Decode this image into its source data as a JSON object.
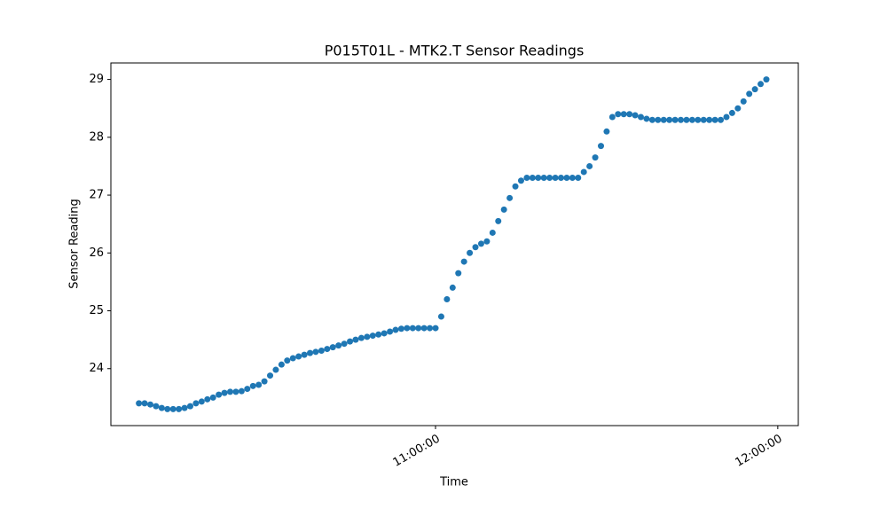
{
  "chart_data": {
    "type": "scatter",
    "title": "P015T01L - MTK2.T Sensor Readings",
    "x_label": "Time",
    "y_label": "Sensor Reading",
    "color": "#1f77b4",
    "x": [
      "10:08:00",
      "10:09:00",
      "10:10:00",
      "10:11:00",
      "10:12:00",
      "10:13:00",
      "10:14:00",
      "10:15:00",
      "10:16:00",
      "10:17:00",
      "10:18:00",
      "10:19:00",
      "10:20:00",
      "10:21:00",
      "10:22:00",
      "10:23:00",
      "10:24:00",
      "10:25:00",
      "10:26:00",
      "10:27:00",
      "10:28:00",
      "10:29:00",
      "10:30:00",
      "10:31:00",
      "10:32:00",
      "10:33:00",
      "10:34:00",
      "10:35:00",
      "10:36:00",
      "10:37:00",
      "10:38:00",
      "10:39:00",
      "10:40:00",
      "10:41:00",
      "10:42:00",
      "10:43:00",
      "10:44:00",
      "10:45:00",
      "10:46:00",
      "10:47:00",
      "10:48:00",
      "10:49:00",
      "10:50:00",
      "10:51:00",
      "10:52:00",
      "10:53:00",
      "10:54:00",
      "10:55:00",
      "10:56:00",
      "10:57:00",
      "10:58:00",
      "10:59:00",
      "11:00:00",
      "11:01:00",
      "11:02:00",
      "11:03:00",
      "11:04:00",
      "11:05:00",
      "11:06:00",
      "11:07:00",
      "11:08:00",
      "11:09:00",
      "11:10:00",
      "11:11:00",
      "11:12:00",
      "11:13:00",
      "11:14:00",
      "11:15:00",
      "11:16:00",
      "11:17:00",
      "11:18:00",
      "11:19:00",
      "11:20:00",
      "11:21:00",
      "11:22:00",
      "11:23:00",
      "11:24:00",
      "11:25:00",
      "11:26:00",
      "11:27:00",
      "11:28:00",
      "11:29:00",
      "11:30:00",
      "11:31:00",
      "11:32:00",
      "11:33:00",
      "11:34:00",
      "11:35:00",
      "11:36:00",
      "11:37:00",
      "11:38:00",
      "11:39:00",
      "11:40:00",
      "11:41:00",
      "11:42:00",
      "11:43:00",
      "11:44:00",
      "11:45:00",
      "11:46:00",
      "11:47:00",
      "11:48:00",
      "11:49:00",
      "11:50:00",
      "11:51:00",
      "11:52:00",
      "11:53:00",
      "11:54:00",
      "11:55:00",
      "11:56:00",
      "11:57:00",
      "11:58:00"
    ],
    "values": [
      23.4,
      23.4,
      23.38,
      23.35,
      23.32,
      23.3,
      23.3,
      23.3,
      23.32,
      23.35,
      23.4,
      23.43,
      23.47,
      23.5,
      23.55,
      23.58,
      23.6,
      23.6,
      23.61,
      23.65,
      23.7,
      23.72,
      23.78,
      23.88,
      23.98,
      24.07,
      24.14,
      24.18,
      24.21,
      24.24,
      24.27,
      24.29,
      24.31,
      24.34,
      24.37,
      24.4,
      24.43,
      24.47,
      24.5,
      24.53,
      24.55,
      24.57,
      24.59,
      24.61,
      24.64,
      24.67,
      24.69,
      24.7,
      24.7,
      24.7,
      24.7,
      24.7,
      24.7,
      24.9,
      25.2,
      25.4,
      25.65,
      25.85,
      26.0,
      26.1,
      26.16,
      26.2,
      26.35,
      26.55,
      26.75,
      26.95,
      27.15,
      27.25,
      27.3,
      27.3,
      27.3,
      27.3,
      27.3,
      27.3,
      27.3,
      27.3,
      27.3,
      27.3,
      27.4,
      27.5,
      27.65,
      27.85,
      28.1,
      28.35,
      28.4,
      28.4,
      28.4,
      28.38,
      28.35,
      28.32,
      28.3,
      28.3,
      28.3,
      28.3,
      28.3,
      28.3,
      28.3,
      28.3,
      28.3,
      28.3,
      28.3,
      28.3,
      28.3,
      28.35,
      28.42,
      28.5,
      28.62,
      28.75,
      28.83,
      28.92,
      29.0
    ],
    "xlim": [
      "10:03:05",
      "12:03:36"
    ],
    "xticks": [
      "11:00:00",
      "12:00:00"
    ],
    "ylim": [
      23.015,
      29.285
    ],
    "yticks": [
      24,
      25,
      26,
      27,
      28,
      29
    ],
    "grid": false
  }
}
